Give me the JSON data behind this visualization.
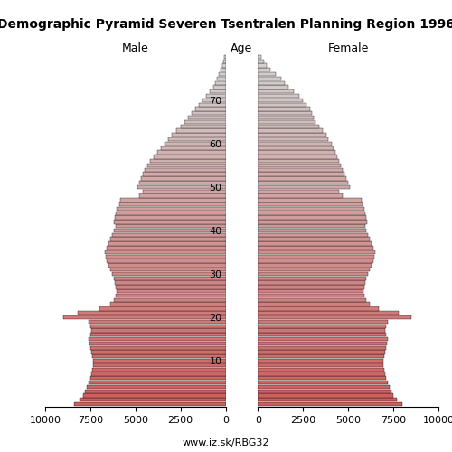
{
  "title": "Demographic Pyramid Severen Tsentralen Planning Region 1996",
  "male_label": "Male",
  "female_label": "Female",
  "age_label": "Age",
  "footer": "www.iz.sk/RBG32",
  "xlim": 10000,
  "ages": [
    0,
    1,
    2,
    3,
    4,
    5,
    6,
    7,
    8,
    9,
    10,
    11,
    12,
    13,
    14,
    15,
    16,
    17,
    18,
    19,
    20,
    21,
    22,
    23,
    24,
    25,
    26,
    27,
    28,
    29,
    30,
    31,
    32,
    33,
    34,
    35,
    36,
    37,
    38,
    39,
    40,
    41,
    42,
    43,
    44,
    45,
    46,
    47,
    48,
    49,
    50,
    51,
    52,
    53,
    54,
    55,
    56,
    57,
    58,
    59,
    60,
    61,
    62,
    63,
    64,
    65,
    66,
    67,
    68,
    69,
    70,
    71,
    72,
    73,
    74,
    75,
    76,
    77,
    78,
    79,
    80
  ],
  "male": [
    8400,
    8100,
    7900,
    7800,
    7700,
    7600,
    7500,
    7450,
    7400,
    7350,
    7350,
    7400,
    7450,
    7500,
    7550,
    7600,
    7500,
    7450,
    7500,
    7600,
    9000,
    8200,
    7000,
    6400,
    6200,
    6100,
    6050,
    6100,
    6150,
    6200,
    6300,
    6400,
    6500,
    6600,
    6650,
    6700,
    6600,
    6500,
    6400,
    6300,
    6200,
    6100,
    6200,
    6150,
    6100,
    6050,
    5900,
    5850,
    4800,
    4600,
    4900,
    4800,
    4700,
    4600,
    4500,
    4350,
    4200,
    4000,
    3800,
    3600,
    3400,
    3200,
    3000,
    2750,
    2500,
    2300,
    2100,
    1900,
    1700,
    1500,
    1300,
    1100,
    900,
    700,
    600,
    500,
    400,
    300,
    200,
    150,
    100
  ],
  "female": [
    8000,
    7700,
    7500,
    7400,
    7300,
    7200,
    7100,
    7050,
    7000,
    6950,
    6950,
    7000,
    7050,
    7100,
    7150,
    7200,
    7100,
    7050,
    7100,
    7200,
    8500,
    7800,
    6700,
    6200,
    6000,
    5900,
    5850,
    5900,
    5950,
    6000,
    6100,
    6200,
    6300,
    6400,
    6450,
    6500,
    6400,
    6300,
    6200,
    6100,
    6000,
    5950,
    6050,
    6000,
    5950,
    5900,
    5800,
    5750,
    4700,
    4500,
    5100,
    5000,
    4900,
    4800,
    4700,
    4600,
    4500,
    4400,
    4300,
    4200,
    4100,
    3900,
    3800,
    3600,
    3400,
    3200,
    3100,
    3000,
    2900,
    2700,
    2500,
    2300,
    2000,
    1700,
    1500,
    1300,
    1000,
    700,
    500,
    350,
    200
  ],
  "bg_color": "#ffffff",
  "young_color_r": 0.804,
  "young_color_g": 0.361,
  "young_color_b": 0.361,
  "old_color_r": 0.827,
  "old_color_g": 0.827,
  "old_color_b": 0.827,
  "title_fontsize": 10,
  "label_fontsize": 9,
  "tick_fontsize": 8,
  "footer_fontsize": 8
}
